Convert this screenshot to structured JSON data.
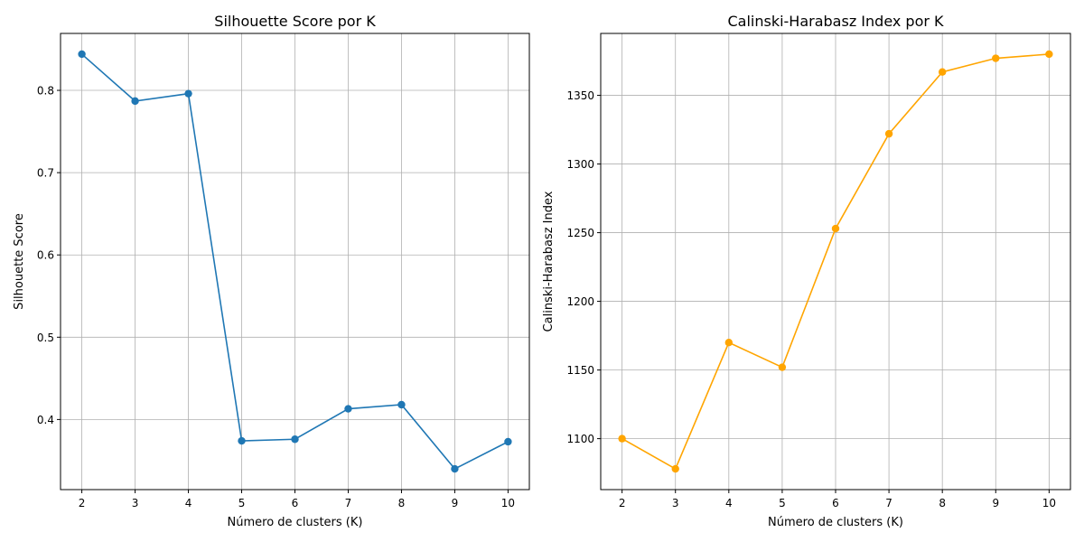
{
  "chart_data": [
    {
      "type": "line",
      "title": "Silhouette Score por K",
      "xlabel": "Número de clusters (K)",
      "ylabel": "Silhouette Score",
      "x": [
        2,
        3,
        4,
        5,
        6,
        7,
        8,
        9,
        10
      ],
      "series": [
        {
          "values": [
            0.844,
            0.787,
            0.796,
            0.374,
            0.376,
            0.413,
            0.418,
            0.34,
            0.373
          ],
          "color": "#1f77b4",
          "marker": "circle"
        }
      ],
      "xticks": [
        2,
        3,
        4,
        5,
        6,
        7,
        8,
        9,
        10
      ],
      "yticks": [
        0.4,
        0.5,
        0.6,
        0.7,
        0.8
      ],
      "ytick_labels": [
        "0.4",
        "0.5",
        "0.6",
        "0.7",
        "0.8"
      ],
      "xlim": [
        1.6,
        10.4
      ],
      "ylim": [
        0.3148,
        0.8692
      ],
      "grid": true
    },
    {
      "type": "line",
      "title": "Calinski-Harabasz Index por K",
      "xlabel": "Número de clusters (K)",
      "ylabel": "Calinski-Harabasz Index",
      "x": [
        2,
        3,
        4,
        5,
        6,
        7,
        8,
        9,
        10
      ],
      "series": [
        {
          "values": [
            1100,
            1078,
            1170,
            1152,
            1253,
            1322,
            1367,
            1377,
            1380
          ],
          "color": "#ffa500",
          "marker": "circle"
        }
      ],
      "xticks": [
        2,
        3,
        4,
        5,
        6,
        7,
        8,
        9,
        10
      ],
      "yticks": [
        1100,
        1150,
        1200,
        1250,
        1300,
        1350
      ],
      "ytick_labels": [
        "1100",
        "1150",
        "1200",
        "1250",
        "1300",
        "1350"
      ],
      "xlim": [
        1.6,
        10.4
      ],
      "ylim": [
        1062.9,
        1395.1
      ],
      "grid": true
    }
  ]
}
